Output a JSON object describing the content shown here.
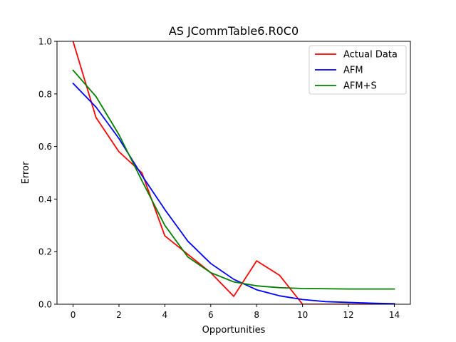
{
  "chart_data": {
    "type": "line",
    "title": "AS JCommTable6.R0C0",
    "xlabel": "Opportunities",
    "ylabel": "Error",
    "xlim": [
      -0.7,
      14.7
    ],
    "ylim": [
      0,
      1.0
    ],
    "x_ticks": [
      0,
      2,
      4,
      6,
      8,
      10,
      12,
      14
    ],
    "x_tick_labels": [
      "0",
      "2",
      "4",
      "6",
      "8",
      "10",
      "12",
      "14"
    ],
    "y_ticks": [
      0.0,
      0.2,
      0.4,
      0.6,
      0.8,
      1.0
    ],
    "y_tick_labels": [
      "0.0",
      "0.2",
      "0.4",
      "0.6",
      "0.8",
      "1.0"
    ],
    "grid": false,
    "legend_position": "top-right",
    "x": [
      0,
      1,
      2,
      3,
      4,
      5,
      6,
      7,
      8,
      9,
      10,
      11,
      12,
      13,
      14
    ],
    "series": [
      {
        "name": "Actual Data",
        "color": "#ff0000",
        "values": [
          1.0,
          0.71,
          0.58,
          0.5,
          0.26,
          0.19,
          0.12,
          0.03,
          0.165,
          0.11,
          0.0,
          0.0,
          0.0,
          0.0,
          0.0
        ]
      },
      {
        "name": "AFM",
        "color": "#0000ff",
        "values": [
          0.84,
          0.75,
          0.63,
          0.49,
          0.36,
          0.24,
          0.155,
          0.095,
          0.055,
          0.032,
          0.018,
          0.01,
          0.007,
          0.004,
          0.002
        ]
      },
      {
        "name": "AFM+S",
        "color": "#008000",
        "values": [
          0.89,
          0.79,
          0.645,
          0.47,
          0.3,
          0.18,
          0.12,
          0.085,
          0.07,
          0.063,
          0.06,
          0.059,
          0.058,
          0.058,
          0.058
        ]
      }
    ]
  }
}
